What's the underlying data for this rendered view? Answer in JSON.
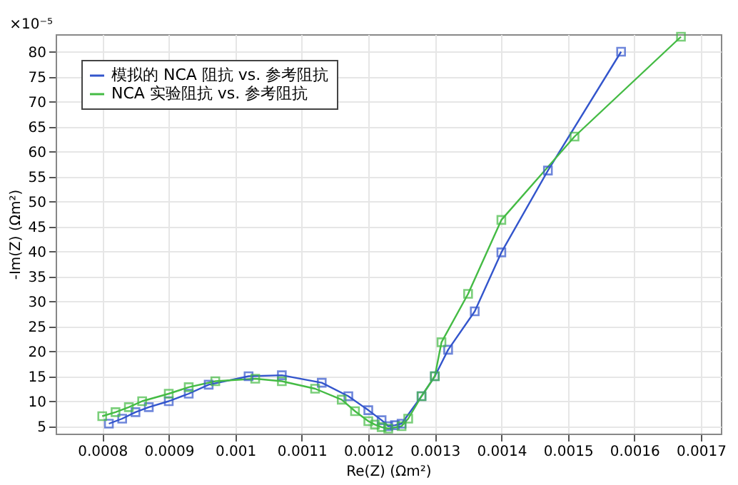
{
  "chart_data": {
    "type": "line",
    "xlabel": "Re(Z) (Ωm²)",
    "ylabel": "-Im(Z) (Ωm²)",
    "annotations": [
      "×10⁻⁵"
    ],
    "xlim": [
      0.00073,
      0.00173
    ],
    "ylim": [
      3.5,
      83.5
    ],
    "xticks": [
      0.0008,
      0.0009,
      0.001,
      0.0011,
      0.0012,
      0.0013,
      0.0014,
      0.0015,
      0.0016,
      0.0017
    ],
    "yticks": [
      5,
      10,
      15,
      20,
      25,
      30,
      35,
      40,
      45,
      50,
      55,
      60,
      65,
      70,
      75,
      80
    ],
    "grid": true,
    "legend": "top left",
    "marker": "square",
    "line_style": "solid",
    "series": [
      {
        "name": "模拟的 NCA 阻抗 vs. 参考阻抗",
        "color": "#3355cc",
        "x": [
          0.00081,
          0.00083,
          0.00085,
          0.00087,
          0.0009,
          0.00093,
          0.00096,
          0.00102,
          0.00107,
          0.00113,
          0.00117,
          0.0012,
          0.00122,
          0.00123,
          0.00124,
          0.00125,
          0.00128,
          0.0013,
          0.00132,
          0.00136,
          0.0014,
          0.00147,
          0.00158
        ],
        "values": [
          5.5,
          6.5,
          7.8,
          8.8,
          10,
          11.5,
          13.3,
          15,
          15.2,
          13.7,
          11,
          8.2,
          6.2,
          5,
          5.2,
          5.5,
          11,
          15,
          20.3,
          28,
          39.8,
          56.2,
          80
        ]
      },
      {
        "name": "NCA 实验阻抗 vs. 参考阻抗",
        "color": "#44bb44",
        "x": [
          0.0008,
          0.00082,
          0.00084,
          0.00086,
          0.0009,
          0.00093,
          0.00097,
          0.00103,
          0.00107,
          0.00112,
          0.00116,
          0.00118,
          0.0012,
          0.00121,
          0.00122,
          0.00123,
          0.00125,
          0.00126,
          0.00128,
          0.0013,
          0.00131,
          0.00135,
          0.0014,
          0.00151,
          0.00167
        ],
        "values": [
          7,
          7.8,
          8.8,
          10,
          11.5,
          12.8,
          14,
          14.5,
          14,
          12.5,
          10.3,
          8,
          6,
          5.3,
          4.8,
          4.5,
          5,
          6.5,
          11,
          15,
          21.8,
          31.5,
          46.3,
          63,
          83
        ]
      }
    ]
  }
}
